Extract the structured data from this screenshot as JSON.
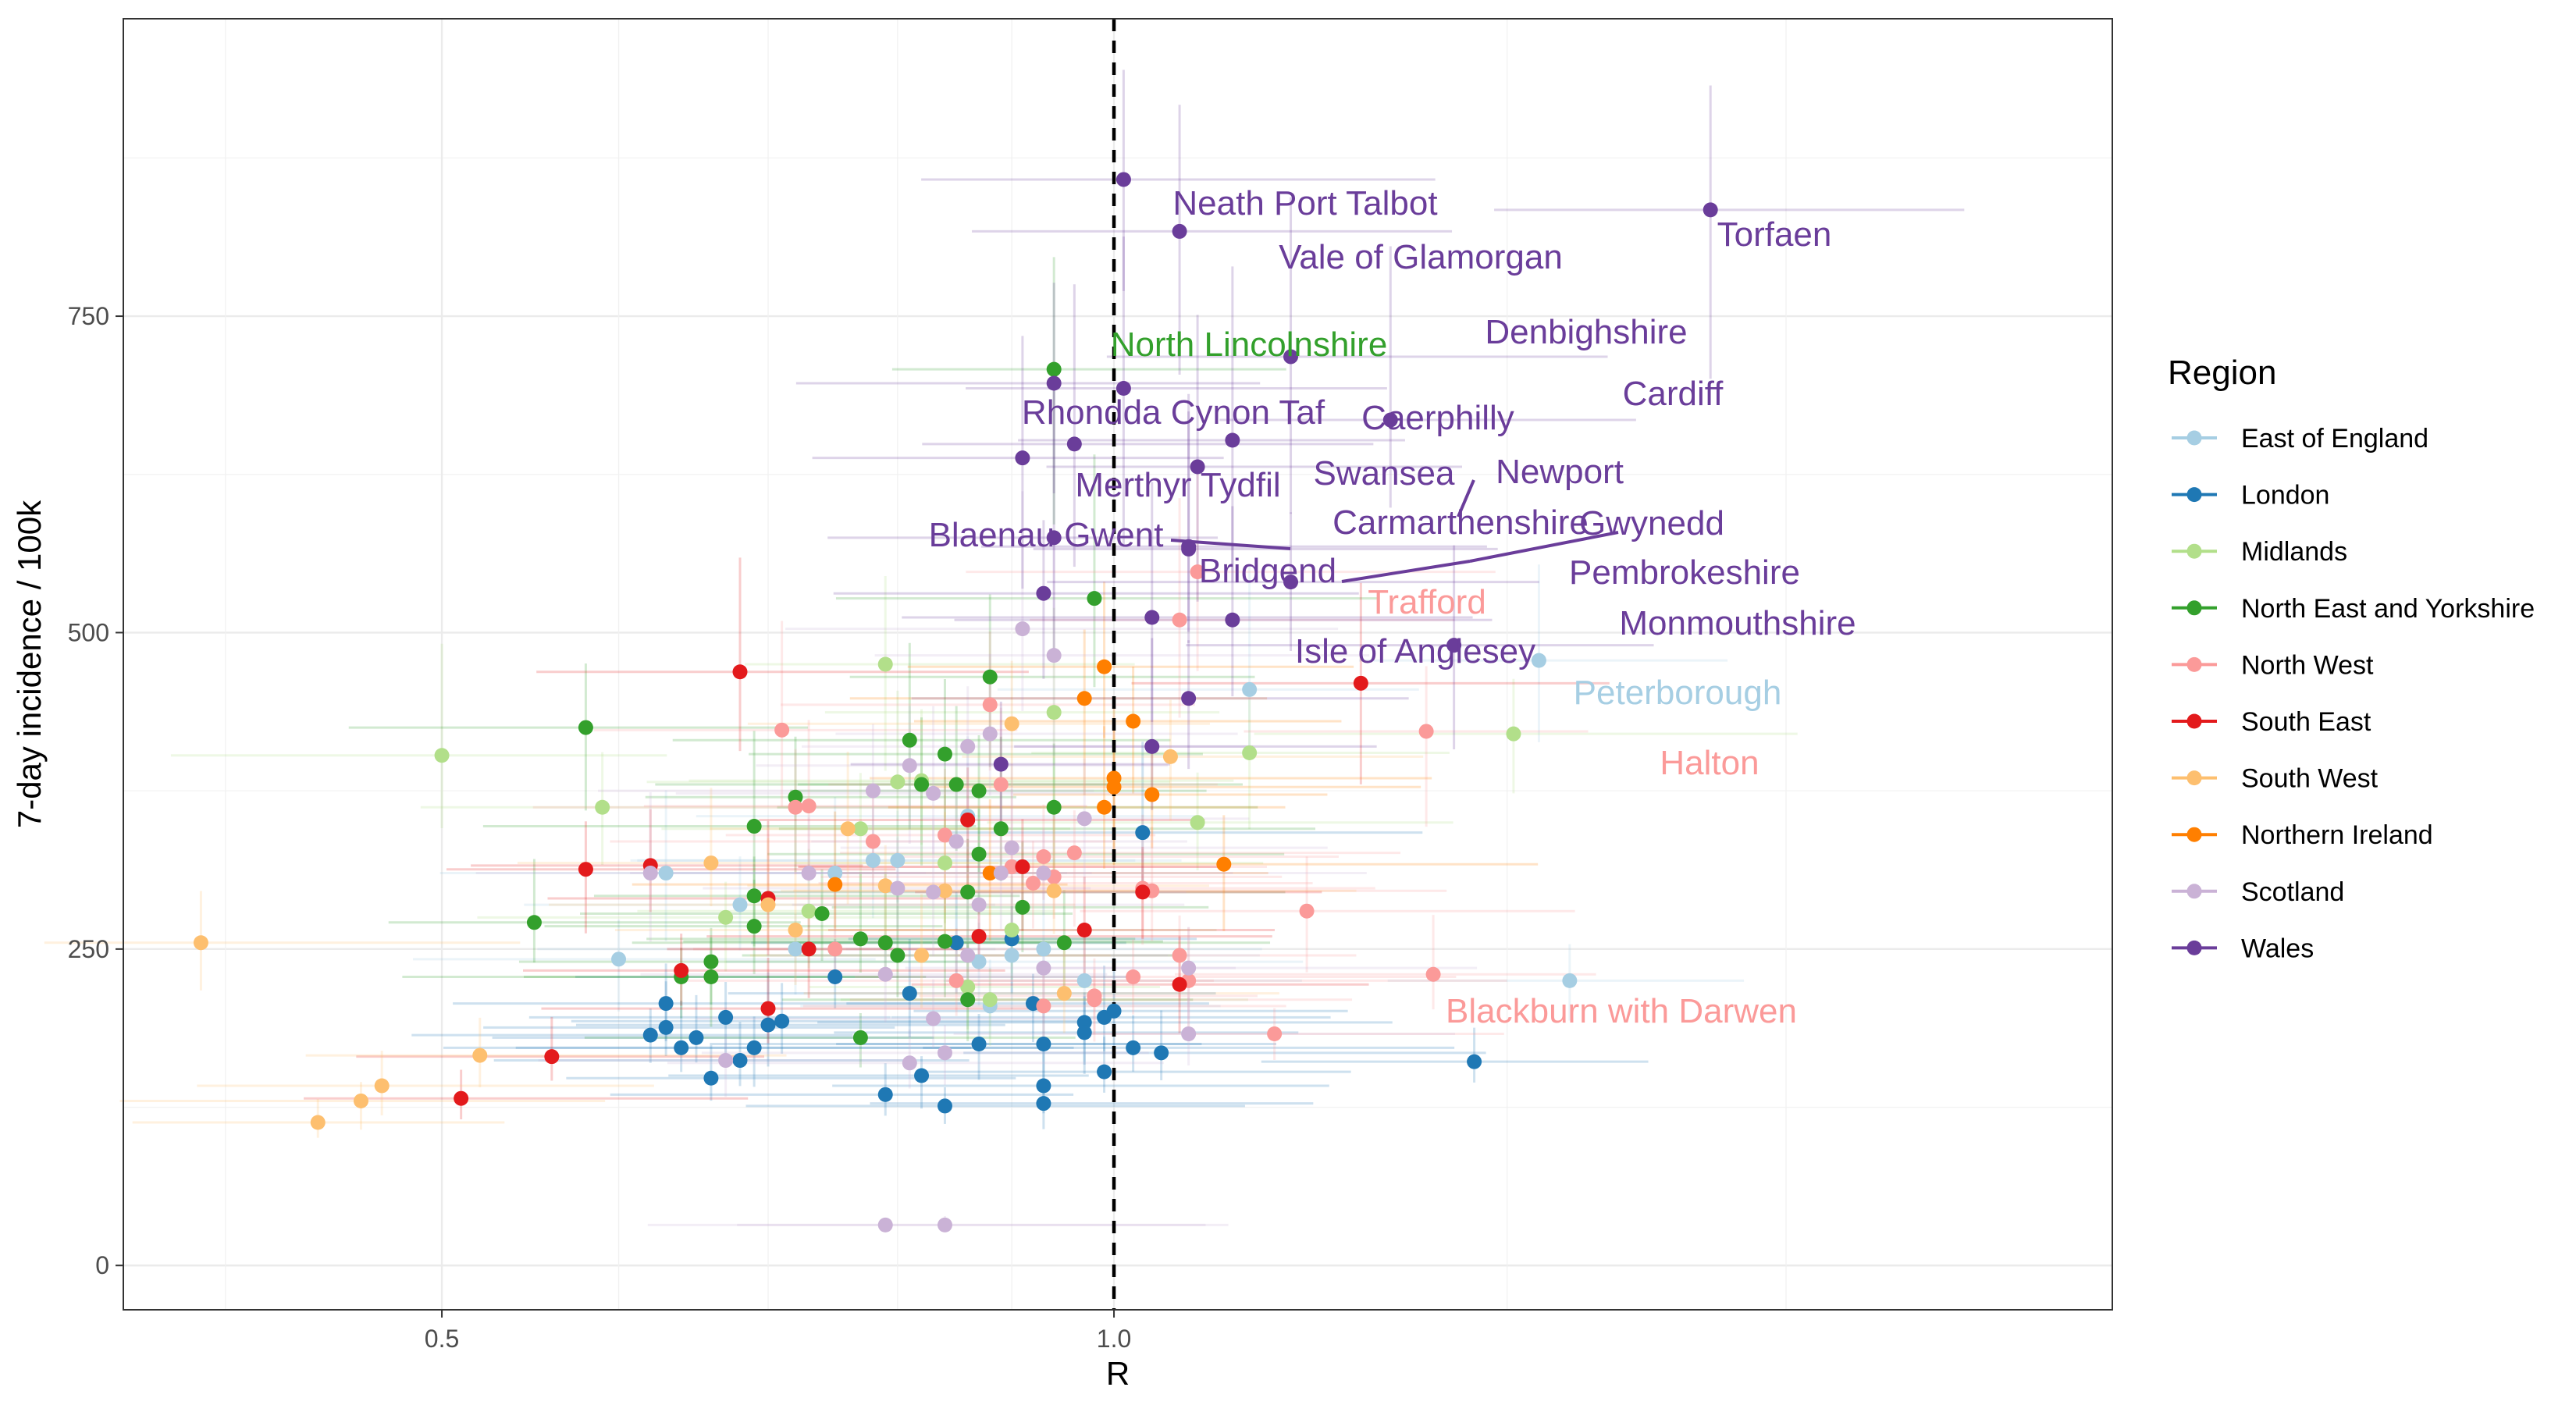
{
  "chart_data": {
    "type": "scatter",
    "xlabel": "R",
    "ylabel": "7-day incidence / 100k",
    "x_scale": "log",
    "xlim": [
      0.36,
      2.8
    ],
    "ylim": [
      -35,
      985
    ],
    "x_ticks": [
      0.5,
      1.0
    ],
    "x_tick_labels": [
      "0.5",
      "1.0"
    ],
    "y_ticks": [
      0,
      250,
      500,
      750
    ],
    "y_tick_labels": [
      "0",
      "250",
      "500",
      "750"
    ],
    "grid": true,
    "reference_line": {
      "x": 1.0,
      "style": "dashed"
    },
    "legend": {
      "title": "Region",
      "position": "right"
    },
    "series": [
      {
        "name": "East of England",
        "color": "#a6cee3",
        "points": [
          {
            "R": 0.6,
            "y": 242
          },
          {
            "R": 0.9,
            "y": 245
          },
          {
            "R": 0.75,
            "y": 310
          },
          {
            "R": 1.6,
            "y": 225
          },
          {
            "R": 1.55,
            "y": 478
          },
          {
            "R": 1.15,
            "y": 455
          },
          {
            "R": 0.8,
            "y": 320
          },
          {
            "R": 0.68,
            "y": 285
          },
          {
            "R": 0.87,
            "y": 240
          },
          {
            "R": 0.93,
            "y": 250
          },
          {
            "R": 0.63,
            "y": 310
          },
          {
            "R": 0.78,
            "y": 320
          },
          {
            "R": 0.88,
            "y": 205
          },
          {
            "R": 0.72,
            "y": 250
          },
          {
            "R": 0.86,
            "y": 355
          },
          {
            "R": 0.97,
            "y": 225
          }
        ]
      },
      {
        "name": "London",
        "color": "#1f78b4",
        "points": [
          {
            "R": 0.63,
            "y": 207
          },
          {
            "R": 0.62,
            "y": 182
          },
          {
            "R": 0.64,
            "y": 172
          },
          {
            "R": 0.66,
            "y": 148
          },
          {
            "R": 0.67,
            "y": 196
          },
          {
            "R": 0.68,
            "y": 162
          },
          {
            "R": 0.69,
            "y": 172
          },
          {
            "R": 0.7,
            "y": 190
          },
          {
            "R": 0.71,
            "y": 193
          },
          {
            "R": 0.75,
            "y": 228
          },
          {
            "R": 0.79,
            "y": 135
          },
          {
            "R": 0.81,
            "y": 215
          },
          {
            "R": 0.82,
            "y": 150
          },
          {
            "R": 0.84,
            "y": 126
          },
          {
            "R": 0.85,
            "y": 255
          },
          {
            "R": 0.87,
            "y": 175
          },
          {
            "R": 0.9,
            "y": 258
          },
          {
            "R": 0.92,
            "y": 207
          },
          {
            "R": 0.93,
            "y": 175
          },
          {
            "R": 0.93,
            "y": 142
          },
          {
            "R": 0.93,
            "y": 128
          },
          {
            "R": 0.97,
            "y": 192
          },
          {
            "R": 0.97,
            "y": 184
          },
          {
            "R": 0.99,
            "y": 196
          },
          {
            "R": 1.0,
            "y": 201
          },
          {
            "R": 0.99,
            "y": 153
          },
          {
            "R": 1.02,
            "y": 172
          },
          {
            "R": 1.03,
            "y": 342
          },
          {
            "R": 1.05,
            "y": 168
          },
          {
            "R": 1.45,
            "y": 161
          },
          {
            "R": 0.63,
            "y": 188
          },
          {
            "R": 0.65,
            "y": 180
          }
        ]
      },
      {
        "name": "Midlands",
        "color": "#b2df8a",
        "points": [
          {
            "R": 0.5,
            "y": 403
          },
          {
            "R": 0.59,
            "y": 362
          },
          {
            "R": 0.67,
            "y": 275
          },
          {
            "R": 0.79,
            "y": 475
          },
          {
            "R": 0.8,
            "y": 382
          },
          {
            "R": 0.82,
            "y": 383
          },
          {
            "R": 0.86,
            "y": 220
          },
          {
            "R": 0.88,
            "y": 210
          },
          {
            "R": 0.9,
            "y": 265
          },
          {
            "R": 0.94,
            "y": 437
          },
          {
            "R": 1.09,
            "y": 350
          },
          {
            "R": 1.15,
            "y": 405
          },
          {
            "R": 1.51,
            "y": 420
          },
          {
            "R": 0.77,
            "y": 345
          },
          {
            "R": 0.73,
            "y": 280
          },
          {
            "R": 0.84,
            "y": 318
          }
        ]
      },
      {
        "name": "North East and Yorkshire",
        "color": "#33a02c",
        "points": [
          {
            "R": 0.94,
            "y": 708
          },
          {
            "R": 0.98,
            "y": 527
          },
          {
            "R": 0.58,
            "y": 425
          },
          {
            "R": 0.55,
            "y": 271
          },
          {
            "R": 0.81,
            "y": 415
          },
          {
            "R": 0.88,
            "y": 465
          },
          {
            "R": 0.84,
            "y": 404
          },
          {
            "R": 0.85,
            "y": 380
          },
          {
            "R": 0.87,
            "y": 375
          },
          {
            "R": 0.89,
            "y": 345
          },
          {
            "R": 0.87,
            "y": 325
          },
          {
            "R": 0.72,
            "y": 370
          },
          {
            "R": 0.69,
            "y": 347
          },
          {
            "R": 0.69,
            "y": 292
          },
          {
            "R": 0.69,
            "y": 268
          },
          {
            "R": 0.74,
            "y": 278
          },
          {
            "R": 0.66,
            "y": 240
          },
          {
            "R": 0.64,
            "y": 228
          },
          {
            "R": 0.66,
            "y": 228
          },
          {
            "R": 0.77,
            "y": 258
          },
          {
            "R": 0.79,
            "y": 255
          },
          {
            "R": 0.8,
            "y": 245
          },
          {
            "R": 0.77,
            "y": 180
          },
          {
            "R": 0.86,
            "y": 210
          },
          {
            "R": 0.91,
            "y": 283
          },
          {
            "R": 0.94,
            "y": 362
          },
          {
            "R": 0.95,
            "y": 255
          },
          {
            "R": 0.86,
            "y": 295
          },
          {
            "R": 0.82,
            "y": 380
          },
          {
            "R": 0.84,
            "y": 256
          }
        ]
      },
      {
        "name": "North West",
        "color": "#fb9a99",
        "points": [
          {
            "R": 1.09,
            "y": 548
          },
          {
            "R": 1.07,
            "y": 510
          },
          {
            "R": 0.88,
            "y": 443
          },
          {
            "R": 0.71,
            "y": 423
          },
          {
            "R": 0.72,
            "y": 362
          },
          {
            "R": 0.73,
            "y": 363
          },
          {
            "R": 0.78,
            "y": 335
          },
          {
            "R": 0.84,
            "y": 340
          },
          {
            "R": 0.89,
            "y": 380
          },
          {
            "R": 0.9,
            "y": 315
          },
          {
            "R": 0.92,
            "y": 302
          },
          {
            "R": 0.93,
            "y": 323
          },
          {
            "R": 0.94,
            "y": 307
          },
          {
            "R": 1.03,
            "y": 298
          },
          {
            "R": 1.04,
            "y": 296
          },
          {
            "R": 1.22,
            "y": 280
          },
          {
            "R": 1.07,
            "y": 245
          },
          {
            "R": 1.02,
            "y": 228
          },
          {
            "R": 1.08,
            "y": 225
          },
          {
            "R": 1.18,
            "y": 183
          },
          {
            "R": 1.39,
            "y": 230
          },
          {
            "R": 1.38,
            "y": 422
          },
          {
            "R": 0.96,
            "y": 326
          },
          {
            "R": 0.98,
            "y": 210
          },
          {
            "R": 0.93,
            "y": 205
          },
          {
            "R": 0.85,
            "y": 225
          },
          {
            "R": 0.75,
            "y": 250
          },
          {
            "R": 0.98,
            "y": 213
          }
        ]
      },
      {
        "name": "South East",
        "color": "#e31a1c",
        "points": [
          {
            "R": 0.68,
            "y": 469
          },
          {
            "R": 0.58,
            "y": 313
          },
          {
            "R": 0.62,
            "y": 316
          },
          {
            "R": 0.7,
            "y": 290
          },
          {
            "R": 0.73,
            "y": 250
          },
          {
            "R": 0.64,
            "y": 233
          },
          {
            "R": 0.7,
            "y": 203
          },
          {
            "R": 0.56,
            "y": 165
          },
          {
            "R": 0.51,
            "y": 132
          },
          {
            "R": 0.87,
            "y": 260
          },
          {
            "R": 0.86,
            "y": 352
          },
          {
            "R": 0.91,
            "y": 315
          },
          {
            "R": 0.97,
            "y": 265
          },
          {
            "R": 1.03,
            "y": 295
          },
          {
            "R": 1.07,
            "y": 222
          },
          {
            "R": 1.29,
            "y": 460
          }
        ]
      },
      {
        "name": "South West",
        "color": "#fdbf6f",
        "points": [
          {
            "R": 0.39,
            "y": 255
          },
          {
            "R": 0.44,
            "y": 113
          },
          {
            "R": 0.46,
            "y": 130
          },
          {
            "R": 0.47,
            "y": 142
          },
          {
            "R": 0.52,
            "y": 166
          },
          {
            "R": 0.66,
            "y": 318
          },
          {
            "R": 0.7,
            "y": 285
          },
          {
            "R": 0.76,
            "y": 345
          },
          {
            "R": 0.79,
            "y": 300
          },
          {
            "R": 0.84,
            "y": 296
          },
          {
            "R": 0.9,
            "y": 428
          },
          {
            "R": 0.94,
            "y": 296
          },
          {
            "R": 1.06,
            "y": 402
          },
          {
            "R": 0.82,
            "y": 245
          },
          {
            "R": 0.72,
            "y": 265
          },
          {
            "R": 0.95,
            "y": 215
          }
        ]
      },
      {
        "name": "Northern Ireland",
        "color": "#ff7f00",
        "points": [
          {
            "R": 0.99,
            "y": 473
          },
          {
            "R": 0.97,
            "y": 448
          },
          {
            "R": 1.02,
            "y": 430
          },
          {
            "R": 1.0,
            "y": 385
          },
          {
            "R": 1.0,
            "y": 378
          },
          {
            "R": 1.04,
            "y": 372
          },
          {
            "R": 0.99,
            "y": 362
          },
          {
            "R": 1.12,
            "y": 317
          },
          {
            "R": 0.75,
            "y": 301
          },
          {
            "R": 0.88,
            "y": 310
          }
        ]
      },
      {
        "name": "Scotland",
        "color": "#cab2d6",
        "points": [
          {
            "R": 0.91,
            "y": 503
          },
          {
            "R": 0.94,
            "y": 482
          },
          {
            "R": 0.78,
            "y": 375
          },
          {
            "R": 0.81,
            "y": 395
          },
          {
            "R": 0.83,
            "y": 373
          },
          {
            "R": 0.86,
            "y": 410
          },
          {
            "R": 0.88,
            "y": 420
          },
          {
            "R": 0.8,
            "y": 298
          },
          {
            "R": 0.83,
            "y": 295
          },
          {
            "R": 0.85,
            "y": 335
          },
          {
            "R": 0.87,
            "y": 285
          },
          {
            "R": 0.89,
            "y": 310
          },
          {
            "R": 0.9,
            "y": 330
          },
          {
            "R": 0.93,
            "y": 235
          },
          {
            "R": 0.97,
            "y": 353
          },
          {
            "R": 1.08,
            "y": 235
          },
          {
            "R": 1.08,
            "y": 183
          },
          {
            "R": 0.83,
            "y": 195
          },
          {
            "R": 0.81,
            "y": 160
          },
          {
            "R": 0.84,
            "y": 168
          },
          {
            "R": 0.67,
            "y": 162
          },
          {
            "R": 0.79,
            "y": 32
          },
          {
            "R": 0.84,
            "y": 32
          },
          {
            "R": 0.93,
            "y": 310
          },
          {
            "R": 0.62,
            "y": 310
          },
          {
            "R": 0.73,
            "y": 310
          },
          {
            "R": 0.86,
            "y": 245
          },
          {
            "R": 0.79,
            "y": 230
          }
        ]
      },
      {
        "name": "Wales",
        "color": "#6a3d9a",
        "points": [
          {
            "R": 1.01,
            "y": 858,
            "label": "Neath Port Talbot"
          },
          {
            "R": 1.85,
            "y": 834,
            "label": "Torfaen"
          },
          {
            "R": 1.07,
            "y": 817,
            "label": "Vale of Glamorgan"
          },
          {
            "R": 1.2,
            "y": 718,
            "label": "Denbighshire"
          },
          {
            "R": 1.01,
            "y": 693,
            "label": "Caerphilly"
          },
          {
            "R": 0.94,
            "y": 697,
            "label": "Rhondda Cynon Taf"
          },
          {
            "R": 1.33,
            "y": 668,
            "label": "Cardiff"
          },
          {
            "R": 1.13,
            "y": 652,
            "label": "Newport"
          },
          {
            "R": 0.96,
            "y": 649,
            "label": "Swansea"
          },
          {
            "R": 0.91,
            "y": 638,
            "label": "Merthyr Tydfil"
          },
          {
            "R": 1.09,
            "y": 631,
            "label": "Carmarthenshire"
          },
          {
            "R": 0.94,
            "y": 575,
            "label": "Blaenau Gwent"
          },
          {
            "R": 1.08,
            "y": 568,
            "label": "Gwynedd"
          },
          {
            "R": 1.08,
            "y": 566,
            "label": "Bridgend"
          },
          {
            "R": 1.2,
            "y": 540,
            "label": "Pembrokeshire"
          },
          {
            "R": 0.93,
            "y": 531
          },
          {
            "R": 1.13,
            "y": 510
          },
          {
            "R": 1.04,
            "y": 512
          },
          {
            "R": 1.42,
            "y": 490,
            "label": "Monmouthshire"
          },
          {
            "R": 1.08,
            "y": 448,
            "label": "Isle of Anglesey"
          },
          {
            "R": 0.89,
            "y": 396
          },
          {
            "R": 1.04,
            "y": 410
          }
        ]
      }
    ],
    "annotations": [
      {
        "text": "Neath Port Talbot",
        "series": "Wales"
      },
      {
        "text": "Torfaen",
        "series": "Wales"
      },
      {
        "text": "Vale of Glamorgan",
        "series": "Wales"
      },
      {
        "text": "North Lincolnshire",
        "series": "North East and Yorkshire"
      },
      {
        "text": "Denbighshire",
        "series": "Wales"
      },
      {
        "text": "Cardiff",
        "series": "Wales"
      },
      {
        "text": "Rhondda Cynon Taf",
        "series": "Wales"
      },
      {
        "text": "Caerphilly",
        "series": "Wales"
      },
      {
        "text": "Swansea",
        "series": "Wales"
      },
      {
        "text": "Newport",
        "series": "Wales"
      },
      {
        "text": "Merthyr Tydfil",
        "series": "Wales"
      },
      {
        "text": "Blaenau Gwent",
        "series": "Wales"
      },
      {
        "text": "Carmarthenshire",
        "series": "Wales"
      },
      {
        "text": "Gwynedd",
        "series": "Wales"
      },
      {
        "text": "Bridgend",
        "series": "Wales"
      },
      {
        "text": "Pembrokeshire",
        "series": "Wales"
      },
      {
        "text": "Trafford",
        "series": "North West"
      },
      {
        "text": "Monmouthshire",
        "series": "Wales"
      },
      {
        "text": "Isle of Anglesey",
        "series": "Wales"
      },
      {
        "text": "Peterborough",
        "series": "East of England"
      },
      {
        "text": "Halton",
        "series": "North West"
      },
      {
        "text": "Blackburn with Darwen",
        "series": "North West"
      }
    ]
  }
}
